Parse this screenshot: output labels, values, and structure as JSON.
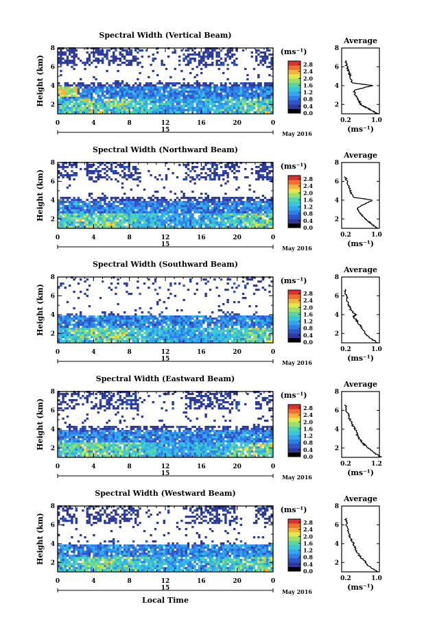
{
  "chart_data": [
    {
      "type": "heatmap",
      "title": "Spectral Width (Vertical Beam)",
      "avg_label": "(ms⁻¹)",
      "avg_x_ticks": [
        "0.2",
        "1.0"
      ],
      "avg_profile": [
        [
          1.05,
          1.0
        ],
        [
          0.9,
          1.3
        ],
        [
          0.7,
          1.7
        ],
        [
          0.55,
          2.0
        ],
        [
          0.5,
          2.5
        ],
        [
          0.4,
          3.0
        ],
        [
          0.35,
          3.5
        ],
        [
          0.9,
          4.0
        ],
        [
          0.3,
          4.3
        ],
        [
          0.25,
          5.0
        ],
        [
          0.2,
          5.6
        ],
        [
          0.15,
          6.0
        ],
        [
          0.12,
          6.7
        ]
      ]
    },
    {
      "type": "heatmap",
      "title": "Spectral Width (Northward Beam)",
      "avg_label": "(ms⁻¹)",
      "avg_x_ticks": [
        "0.2",
        "1.0"
      ],
      "avg_profile": [
        [
          1.05,
          1.0
        ],
        [
          0.85,
          1.5
        ],
        [
          0.7,
          2.0
        ],
        [
          0.55,
          2.6
        ],
        [
          0.45,
          3.2
        ],
        [
          0.9,
          4.0
        ],
        [
          0.35,
          4.3
        ],
        [
          0.25,
          5.0
        ],
        [
          0.18,
          5.8
        ],
        [
          0.1,
          6.5
        ]
      ]
    },
    {
      "type": "heatmap",
      "title": "Spectral Width (Southward Beam)",
      "avg_label": "(ms⁻¹)",
      "avg_x_ticks": [
        "0.2",
        "1.0"
      ],
      "avg_profile": [
        [
          1.05,
          1.0
        ],
        [
          0.8,
          1.6
        ],
        [
          0.65,
          2.2
        ],
        [
          0.55,
          2.8
        ],
        [
          0.45,
          3.3
        ],
        [
          0.35,
          3.8
        ],
        [
          0.4,
          4.0
        ],
        [
          0.25,
          4.6
        ],
        [
          0.18,
          5.4
        ],
        [
          0.12,
          6.2
        ],
        [
          0.1,
          6.7
        ]
      ]
    },
    {
      "type": "heatmap",
      "title": "Spectral Width (Eastward Beam)",
      "avg_label": "(ms⁻¹)",
      "avg_x_ticks": [
        "0.2",
        "1.2"
      ],
      "avg_profile": [
        [
          1.15,
          1.0
        ],
        [
          0.9,
          1.6
        ],
        [
          0.7,
          2.2
        ],
        [
          0.55,
          2.8
        ],
        [
          0.45,
          3.4
        ],
        [
          0.4,
          4.0
        ],
        [
          0.3,
          4.5
        ],
        [
          0.22,
          5.2
        ],
        [
          0.15,
          5.9
        ],
        [
          0.1,
          6.6
        ]
      ]
    },
    {
      "type": "heatmap",
      "title": "Spectral Width (Westward Beam)",
      "avg_label": "(ms⁻¹)",
      "avg_x_ticks": [
        "0.2",
        "1.0"
      ],
      "avg_profile": [
        [
          1.05,
          1.0
        ],
        [
          0.8,
          1.6
        ],
        [
          0.65,
          2.2
        ],
        [
          0.5,
          2.8
        ],
        [
          0.4,
          3.4
        ],
        [
          0.35,
          4.0
        ],
        [
          0.25,
          4.6
        ],
        [
          0.2,
          5.3
        ],
        [
          0.15,
          6.0
        ],
        [
          0.12,
          6.7
        ]
      ]
    }
  ],
  "common": {
    "ylabel": "Height (km)",
    "y_ticks": [
      "2",
      "4",
      "6",
      "8"
    ],
    "y_range": [
      1,
      8
    ],
    "x_ticks": [
      "0",
      "4",
      "8",
      "12",
      "16",
      "20",
      "0"
    ],
    "x_range": [
      0,
      24
    ],
    "date_day": "15",
    "date_month": "May 2016",
    "xlabel": "Local Time",
    "unit": "(ms⁻¹)",
    "colorbar_ticks": [
      "0.0",
      "0.4",
      "0.8",
      "1.2",
      "1.6",
      "2.0",
      "2.4",
      "2.8"
    ],
    "colorbar_range": [
      0,
      3.0
    ],
    "avg_title": "Average",
    "avg_y_ticks": [
      "2",
      "4",
      "6",
      "8"
    ],
    "colormap": [
      "#000000",
      "#2e3a9a",
      "#2f55c9",
      "#2f7fe6",
      "#34a6f0",
      "#38c6d8",
      "#55d6a6",
      "#9be06b",
      "#e2e84a",
      "#f6b23a",
      "#f07030",
      "#d8322e"
    ]
  }
}
